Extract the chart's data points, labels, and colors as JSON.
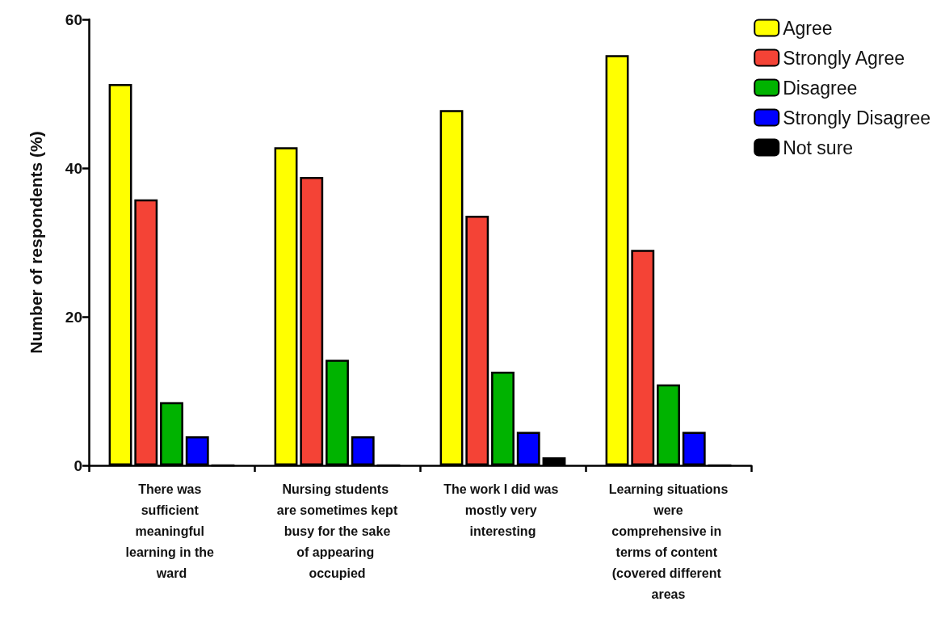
{
  "chart_data": {
    "type": "bar",
    "ylabel": "Number of respondents (%)",
    "categories": [
      "There was sufficient meaningful learning in the ward",
      "Nursing students are sometimes kept busy for the sake of appearing occupied",
      "The work I did was mostly very interesting",
      "Learning situations were comprehensive in terms of content (covered different areas"
    ],
    "series": [
      {
        "name": "Agree",
        "color": "#ffff00",
        "values": [
          51.3,
          42.8,
          47.8,
          55.2
        ]
      },
      {
        "name": "Strongly Agree",
        "color": "#f44336",
        "values": [
          35.8,
          38.8,
          33.6,
          29.0
        ]
      },
      {
        "name": "Disagree",
        "color": "#00b300",
        "values": [
          8.5,
          14.2,
          12.6,
          10.9
        ]
      },
      {
        "name": "Strongly Disagree",
        "color": "#0000ff",
        "values": [
          3.9,
          3.9,
          4.5,
          4.5
        ]
      },
      {
        "name": "Not sure",
        "color": "#000000",
        "values": [
          0,
          0,
          1.1,
          0
        ]
      }
    ],
    "ylim": [
      0,
      60
    ],
    "yticks": [
      0,
      20,
      40,
      60
    ],
    "grid": false,
    "legend": "top right"
  }
}
